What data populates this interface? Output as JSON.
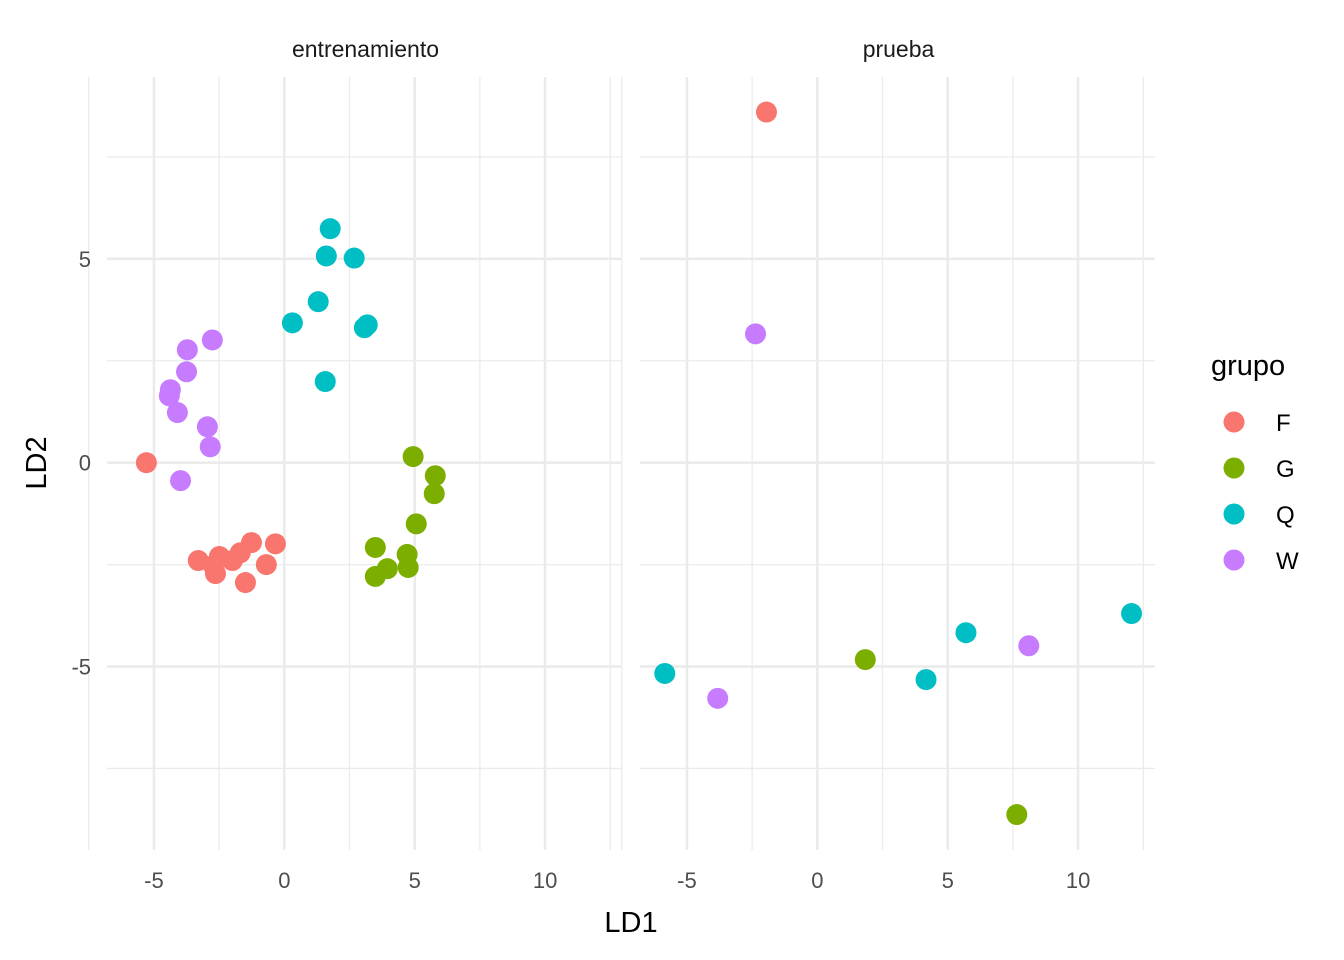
{
  "chart_data": {
    "type": "scatter",
    "title": "",
    "xlabel": "LD1",
    "ylabel": "LD2",
    "xlim": [
      -6.8,
      12.95
    ],
    "ylim": [
      -9.5,
      9.46
    ],
    "x_ticks": [
      -5,
      0,
      5,
      10
    ],
    "x_tick_labels": [
      "-5",
      "0",
      "5",
      "10"
    ],
    "x_minor_ticks": [
      -7.5,
      -2.5,
      2.5,
      7.5,
      12.5
    ],
    "y_ticks": [
      -5,
      0,
      5
    ],
    "y_tick_labels": [
      "-5",
      "0",
      "5"
    ],
    "y_minor_ticks": [
      -7.5,
      -2.5,
      2.5,
      7.5
    ],
    "grid": true,
    "legend": {
      "title": "grupo",
      "position": "right",
      "entries": [
        {
          "label": "F",
          "color": "#F8766D"
        },
        {
          "label": "G",
          "color": "#7CAE00"
        },
        {
          "label": "Q",
          "color": "#00BFC4"
        },
        {
          "label": "W",
          "color": "#C77CFF"
        }
      ]
    },
    "panels": [
      {
        "label": "entrenamiento",
        "series": [
          {
            "name": "F",
            "points": [
              [
                -5.29,
                0.0
              ],
              [
                -3.3,
                -2.4
              ],
              [
                -2.49,
                -2.3
              ],
              [
                -2.72,
                -2.52
              ],
              [
                -2.64,
                -2.72
              ],
              [
                -1.99,
                -2.4
              ],
              [
                -1.69,
                -2.21
              ],
              [
                -1.26,
                -1.96
              ],
              [
                -0.34,
                -1.99
              ],
              [
                -0.69,
                -2.5
              ],
              [
                -1.49,
                -2.94
              ]
            ]
          },
          {
            "name": "G",
            "points": [
              [
                4.94,
                0.15
              ],
              [
                5.79,
                -0.32
              ],
              [
                5.75,
                -0.76
              ],
              [
                5.06,
                -1.5
              ],
              [
                3.49,
                -2.08
              ],
              [
                4.71,
                -2.25
              ],
              [
                4.75,
                -2.57
              ],
              [
                3.95,
                -2.6
              ],
              [
                3.49,
                -2.79
              ]
            ]
          },
          {
            "name": "Q",
            "points": [
              [
                1.76,
                5.74
              ],
              [
                1.61,
                5.07
              ],
              [
                2.68,
                5.02
              ],
              [
                1.3,
                3.95
              ],
              [
                0.31,
                3.43
              ],
              [
                3.07,
                3.31
              ],
              [
                3.18,
                3.38
              ],
              [
                1.57,
                1.99
              ]
            ]
          },
          {
            "name": "W",
            "points": [
              [
                -2.76,
                3.01
              ],
              [
                -3.72,
                2.77
              ],
              [
                -3.75,
                2.23
              ],
              [
                -4.37,
                1.79
              ],
              [
                -4.41,
                1.64
              ],
              [
                -4.1,
                1.23
              ],
              [
                -2.95,
                0.88
              ],
              [
                -2.84,
                0.39
              ],
              [
                -3.98,
                -0.44
              ]
            ]
          }
        ]
      },
      {
        "label": "prueba",
        "series": [
          {
            "name": "F",
            "points": [
              [
                -1.95,
                8.6
              ]
            ]
          },
          {
            "name": "G",
            "points": [
              [
                1.84,
                -4.83
              ],
              [
                7.65,
                -8.63
              ]
            ]
          },
          {
            "name": "Q",
            "points": [
              [
                -5.85,
                -5.17
              ],
              [
                4.17,
                -5.32
              ],
              [
                5.7,
                -4.17
              ],
              [
                12.05,
                -3.7
              ]
            ]
          },
          {
            "name": "W",
            "points": [
              [
                -2.37,
                3.16
              ],
              [
                -3.82,
                -5.78
              ],
              [
                8.11,
                -4.49
              ]
            ]
          }
        ]
      }
    ]
  }
}
